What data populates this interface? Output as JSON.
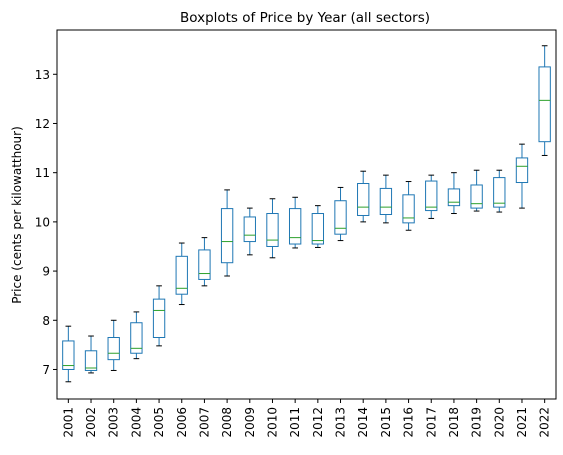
{
  "chart_data": {
    "type": "box",
    "title": "Boxplots of Price by Year (all sectors)",
    "xlabel": "",
    "ylabel": "Price (cents per kilowatthour)",
    "ylim": [
      6.4,
      13.9
    ],
    "yticks": [
      7,
      8,
      9,
      10,
      11,
      12,
      13
    ],
    "grid": false,
    "colors": {
      "box": "#1f77b4",
      "median": "#2ca02c",
      "whisker": "#1f77b4",
      "cap": "#000000",
      "axis": "#000000"
    },
    "categories": [
      "2001",
      "2002",
      "2003",
      "2004",
      "2005",
      "2006",
      "2007",
      "2008",
      "2009",
      "2010",
      "2011",
      "2012",
      "2013",
      "2014",
      "2015",
      "2016",
      "2017",
      "2018",
      "2019",
      "2020",
      "2021",
      "2022"
    ],
    "boxes": [
      {
        "min": 6.75,
        "q1": 7.0,
        "median": 7.08,
        "q3": 7.58,
        "max": 7.88
      },
      {
        "min": 6.93,
        "q1": 6.98,
        "median": 7.03,
        "q3": 7.38,
        "max": 7.68
      },
      {
        "min": 6.98,
        "q1": 7.2,
        "median": 7.33,
        "q3": 7.65,
        "max": 8.0
      },
      {
        "min": 7.22,
        "q1": 7.33,
        "median": 7.43,
        "q3": 7.95,
        "max": 8.17
      },
      {
        "min": 7.48,
        "q1": 7.65,
        "median": 8.2,
        "q3": 8.43,
        "max": 8.7
      },
      {
        "min": 8.32,
        "q1": 8.53,
        "median": 8.65,
        "q3": 9.3,
        "max": 9.57
      },
      {
        "min": 8.7,
        "q1": 8.83,
        "median": 8.95,
        "q3": 9.43,
        "max": 9.68
      },
      {
        "min": 8.9,
        "q1": 9.17,
        "median": 9.6,
        "q3": 10.27,
        "max": 10.65
      },
      {
        "min": 9.33,
        "q1": 9.6,
        "median": 9.73,
        "q3": 10.1,
        "max": 10.28
      },
      {
        "min": 9.27,
        "q1": 9.5,
        "median": 9.63,
        "q3": 10.17,
        "max": 10.47
      },
      {
        "min": 9.47,
        "q1": 9.55,
        "median": 9.68,
        "q3": 10.27,
        "max": 10.5
      },
      {
        "min": 9.48,
        "q1": 9.55,
        "median": 9.62,
        "q3": 10.17,
        "max": 10.33
      },
      {
        "min": 9.62,
        "q1": 9.75,
        "median": 9.87,
        "q3": 10.43,
        "max": 10.7
      },
      {
        "min": 10.0,
        "q1": 10.13,
        "median": 10.3,
        "q3": 10.78,
        "max": 11.03
      },
      {
        "min": 9.98,
        "q1": 10.15,
        "median": 10.3,
        "q3": 10.68,
        "max": 10.95
      },
      {
        "min": 9.83,
        "q1": 9.98,
        "median": 10.08,
        "q3": 10.55,
        "max": 10.82
      },
      {
        "min": 10.07,
        "q1": 10.23,
        "median": 10.3,
        "q3": 10.83,
        "max": 10.95
      },
      {
        "min": 10.17,
        "q1": 10.33,
        "median": 10.4,
        "q3": 10.67,
        "max": 11.0
      },
      {
        "min": 10.22,
        "q1": 10.28,
        "median": 10.37,
        "q3": 10.75,
        "max": 11.05
      },
      {
        "min": 10.2,
        "q1": 10.3,
        "median": 10.38,
        "q3": 10.9,
        "max": 11.05
      },
      {
        "min": 10.28,
        "q1": 10.8,
        "median": 11.13,
        "q3": 11.3,
        "max": 11.58
      },
      {
        "min": 11.35,
        "q1": 11.63,
        "median": 12.47,
        "q3": 13.15,
        "max": 13.58
      }
    ]
  }
}
